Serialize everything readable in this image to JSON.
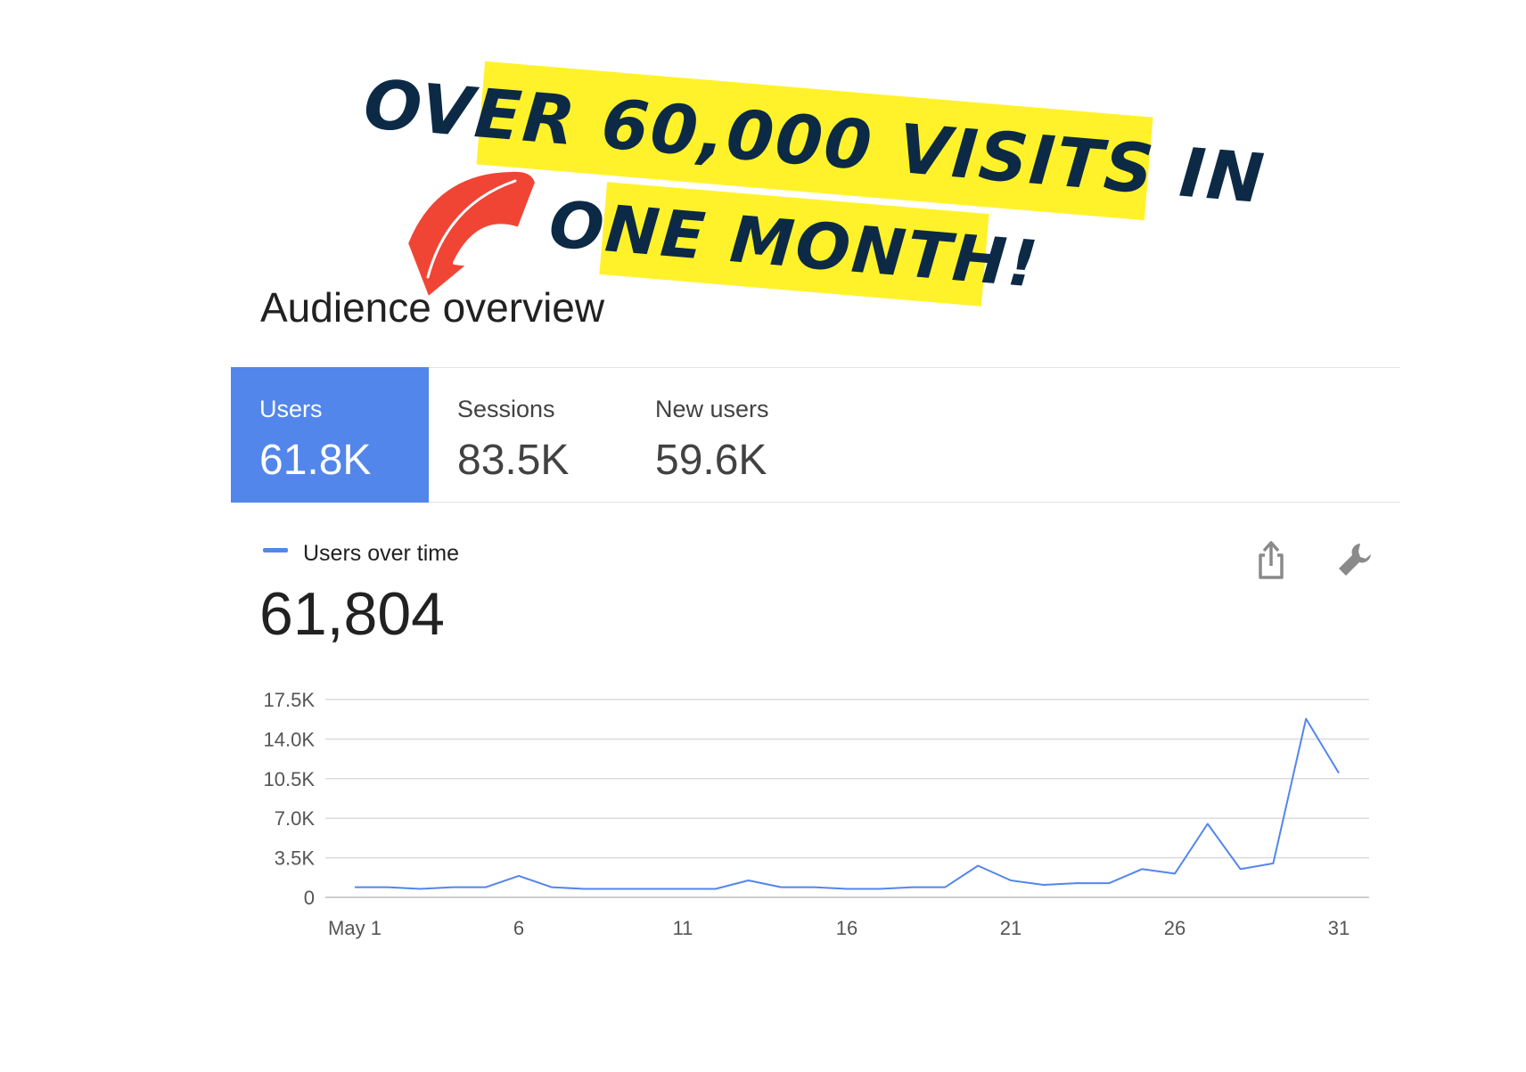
{
  "banner": {
    "line1": "OVER 60,000 VISITS IN",
    "line2": "ONE MONTH!",
    "background_color": "#fff22a",
    "text_color": "#0c2a45",
    "arrow_color": "#f04535"
  },
  "page_title": "Audience overview",
  "metric_tabs": [
    {
      "label": "Users",
      "value": "61.8K",
      "selected": true
    },
    {
      "label": "Sessions",
      "value": "83.5K",
      "selected": false
    },
    {
      "label": "New users",
      "value": "59.6K",
      "selected": false
    }
  ],
  "legend_label": "Users over time",
  "total_value": "61,804",
  "icons": {
    "share": "share-icon",
    "settings": "wrench-icon"
  },
  "accent_color": "#5386ea",
  "chart_data": {
    "type": "line",
    "title": "",
    "xlabel": "",
    "ylabel": "",
    "x": [
      1,
      2,
      3,
      4,
      5,
      6,
      7,
      8,
      9,
      10,
      11,
      12,
      13,
      14,
      15,
      16,
      17,
      18,
      19,
      20,
      21,
      22,
      23,
      24,
      25,
      26,
      27,
      28,
      29,
      30,
      31
    ],
    "x_tick_labels": [
      {
        "x": 1,
        "label": "May 1"
      },
      {
        "x": 6,
        "label": "6"
      },
      {
        "x": 11,
        "label": "11"
      },
      {
        "x": 16,
        "label": "16"
      },
      {
        "x": 21,
        "label": "21"
      },
      {
        "x": 26,
        "label": "26"
      },
      {
        "x": 31,
        "label": "31"
      }
    ],
    "y_ticks": [
      0,
      3500,
      7000,
      10500,
      14000,
      17500
    ],
    "y_tick_labels": [
      "0",
      "3.5K",
      "7.0K",
      "10.5K",
      "14.0K",
      "17.5K"
    ],
    "ylim": [
      0,
      17500
    ],
    "grid": true,
    "series": [
      {
        "color": "#5386ea",
        "values": [
          900,
          900,
          750,
          900,
          900,
          1900,
          900,
          750,
          750,
          750,
          750,
          750,
          1500,
          900,
          900,
          750,
          750,
          900,
          900,
          2800,
          1500,
          1100,
          1250,
          1250,
          2500,
          2100,
          6500,
          2500,
          3000,
          15800,
          11000
        ]
      }
    ]
  }
}
